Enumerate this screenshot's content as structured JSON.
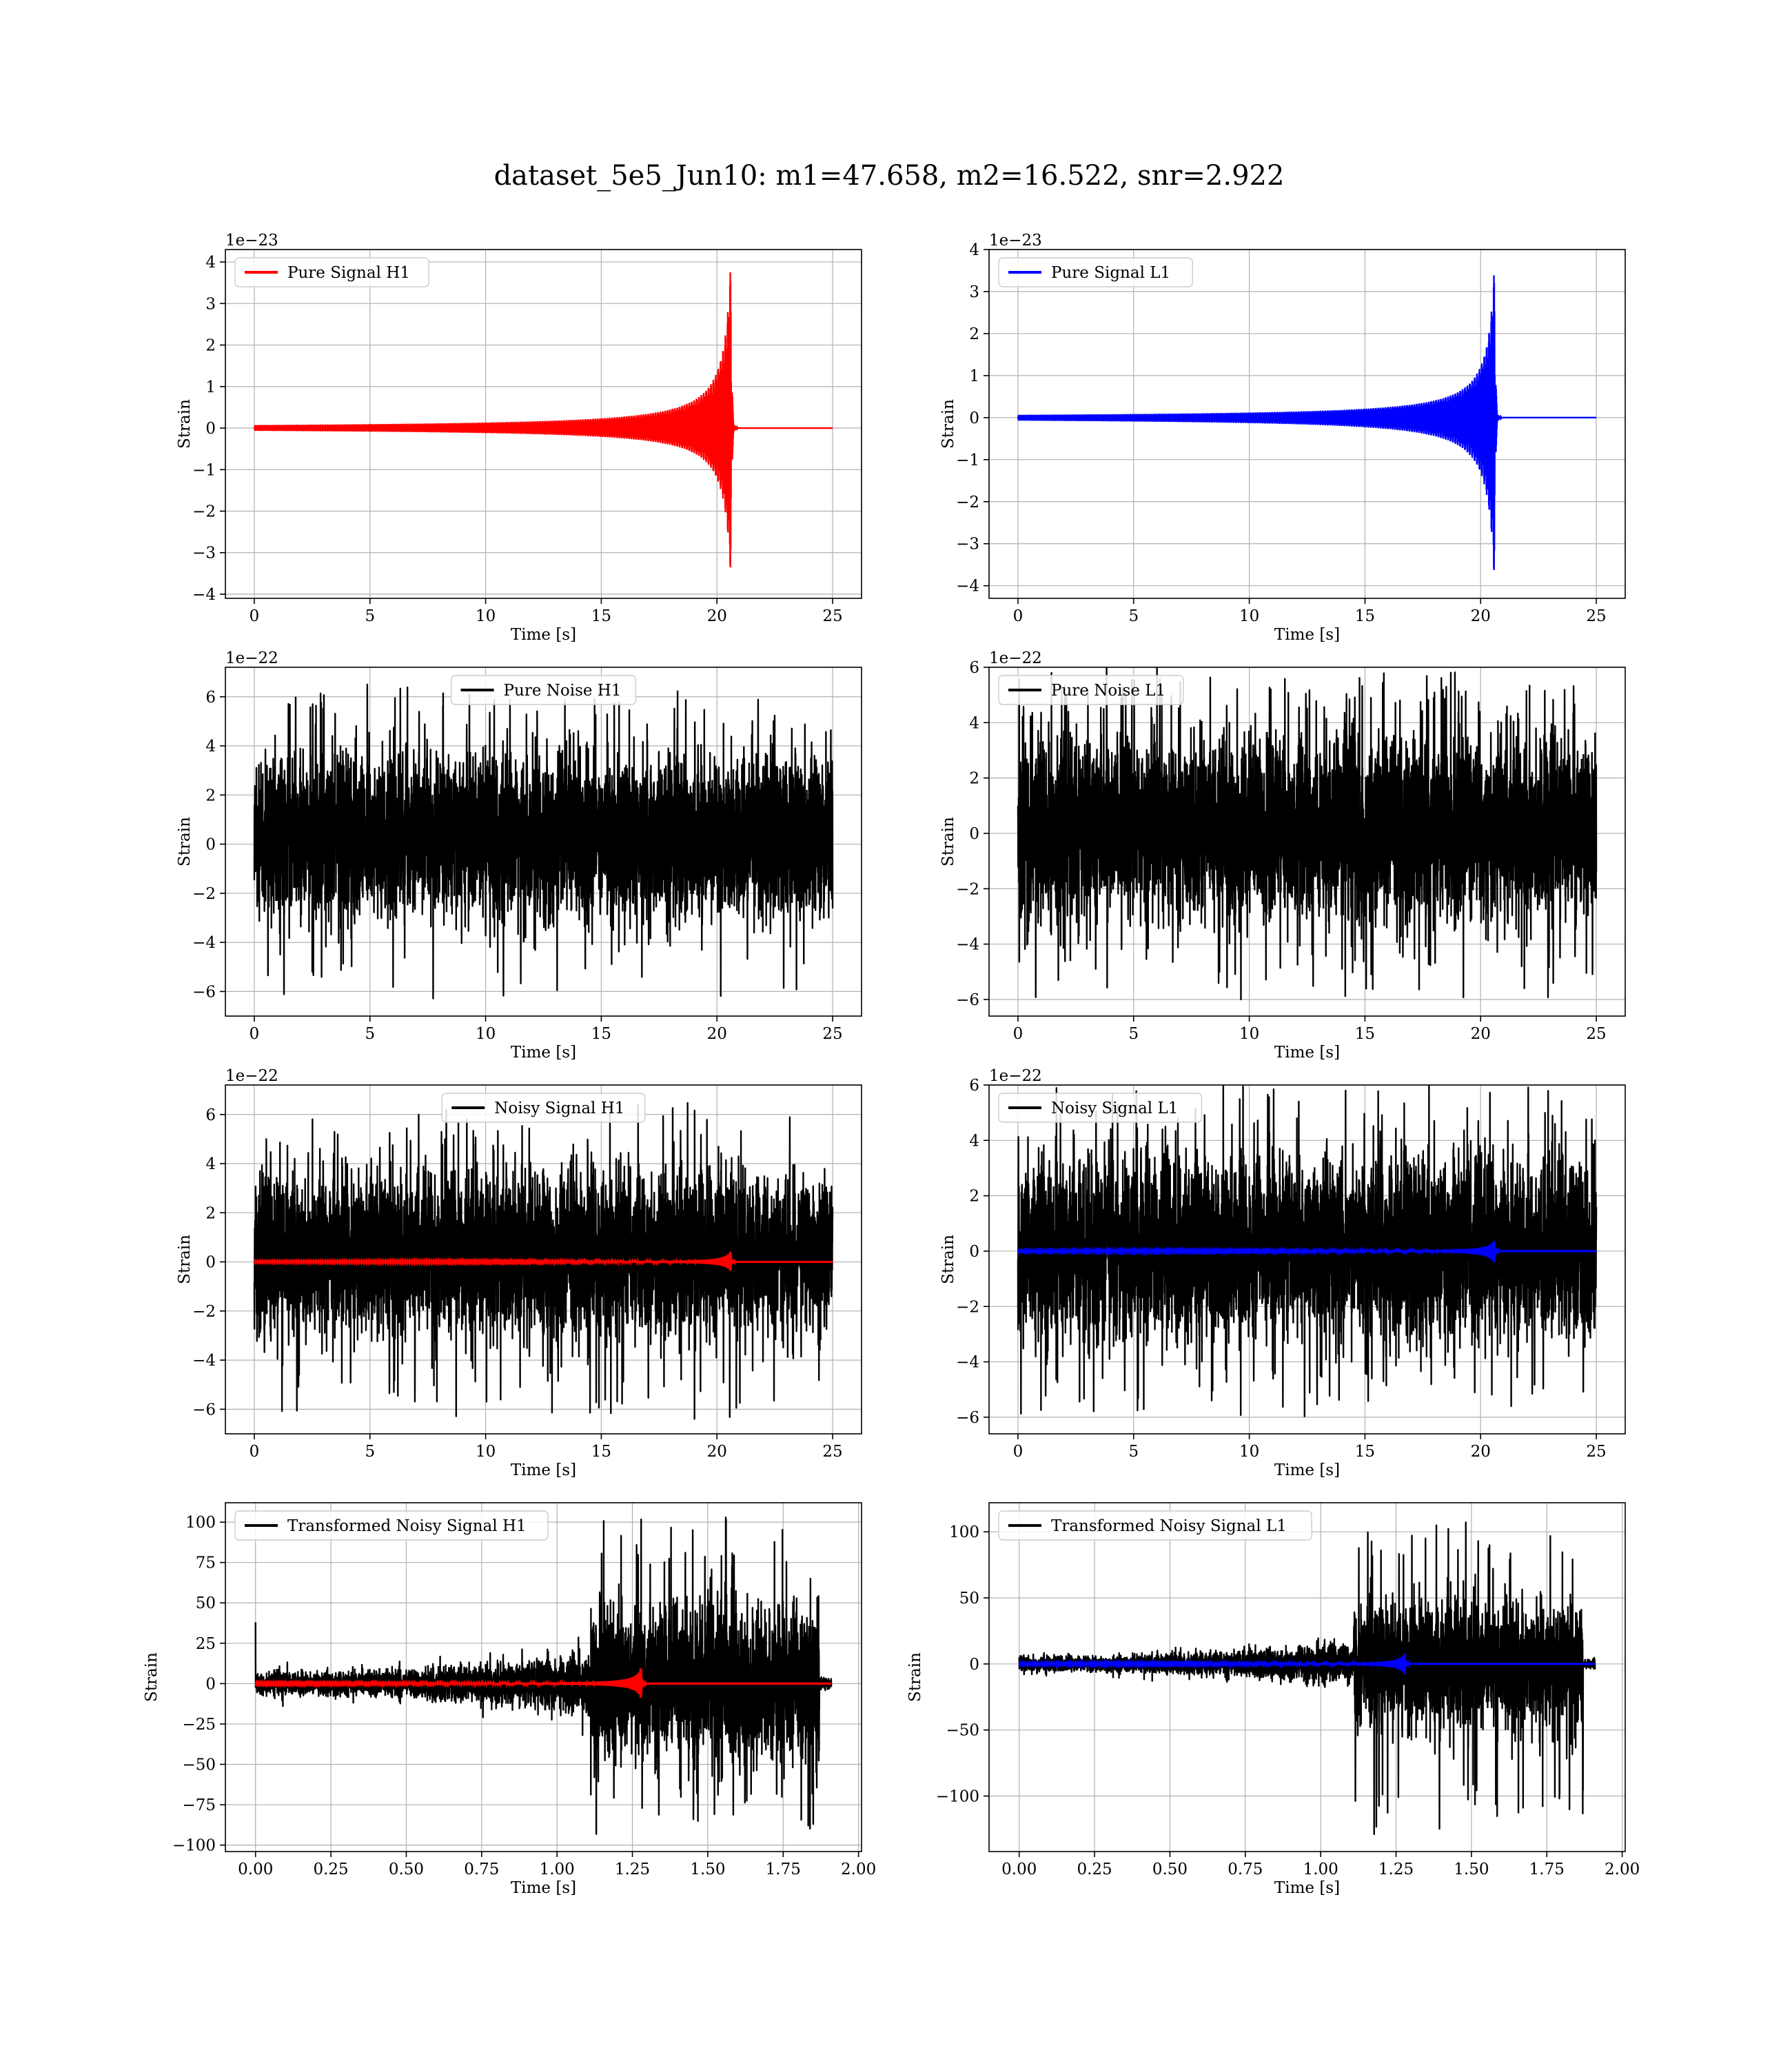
{
  "figure_title": "dataset_5e5_Jun10: m1=47.658, m2=16.522, snr=2.922",
  "chart_data": [
    {
      "id": "pure-signal-h1",
      "type": "line",
      "xlabel": "Time [s]",
      "ylabel": "Strain",
      "offset_text": "1e−23",
      "xlim": [
        -1.25,
        26.25
      ],
      "ylim": [
        -4.1,
        4.3
      ],
      "xticks": [
        0,
        5,
        10,
        15,
        20,
        25
      ],
      "xtick_labels": [
        "0",
        "5",
        "10",
        "15",
        "20",
        "25"
      ],
      "yticks": [
        -4,
        -3,
        -2,
        -1,
        0,
        1,
        2,
        3,
        4
      ],
      "ytick_labels": [
        "−4",
        "−3",
        "−2",
        "−1",
        "0",
        "1",
        "2",
        "3",
        "4"
      ],
      "legend": "upper-left",
      "grid": true,
      "kind": "chirp",
      "series": [
        {
          "name": "Pure Signal H1",
          "color": "#ff0000",
          "x_range": [
            0,
            25
          ],
          "merger_time": 20.6,
          "peak": 4.1,
          "trough": -3.7
        }
      ]
    },
    {
      "id": "pure-signal-l1",
      "type": "line",
      "xlabel": "Time [s]",
      "ylabel": "Strain",
      "offset_text": "1e−23",
      "xlim": [
        -1.25,
        26.25
      ],
      "ylim": [
        -4.3,
        4.0
      ],
      "xticks": [
        0,
        5,
        10,
        15,
        20,
        25
      ],
      "xtick_labels": [
        "0",
        "5",
        "10",
        "15",
        "20",
        "25"
      ],
      "yticks": [
        -4,
        -3,
        -2,
        -1,
        0,
        1,
        2,
        3,
        4
      ],
      "ytick_labels": [
        "−4",
        "−3",
        "−2",
        "−1",
        "0",
        "1",
        "2",
        "3",
        "4"
      ],
      "legend": "upper-left",
      "grid": true,
      "kind": "chirp",
      "series": [
        {
          "name": "Pure Signal L1",
          "color": "#0000ff",
          "x_range": [
            0,
            25
          ],
          "merger_time": 20.6,
          "peak": 3.7,
          "trough": -4.0
        }
      ]
    },
    {
      "id": "pure-noise-h1",
      "type": "line",
      "xlabel": "Time [s]",
      "ylabel": "Strain",
      "offset_text": "1e−22",
      "xlim": [
        -1.25,
        26.25
      ],
      "ylim": [
        -7.0,
        7.2
      ],
      "xticks": [
        0,
        5,
        10,
        15,
        20,
        25
      ],
      "xtick_labels": [
        "0",
        "5",
        "10",
        "15",
        "20",
        "25"
      ],
      "yticks": [
        -6,
        -4,
        -2,
        0,
        2,
        4,
        6
      ],
      "ytick_labels": [
        "−6",
        "−4",
        "−2",
        "0",
        "2",
        "4",
        "6"
      ],
      "legend": "upper-center",
      "grid": true,
      "kind": "noise",
      "series": [
        {
          "name": "Pure Noise H1",
          "color": "#000000",
          "x_range": [
            0,
            25
          ],
          "band": [
            -3.3,
            4.0
          ],
          "spike_max": 6.5,
          "spike_min": -6.4
        }
      ]
    },
    {
      "id": "pure-noise-l1",
      "type": "line",
      "xlabel": "Time [s]",
      "ylabel": "Strain",
      "offset_text": "1e−22",
      "xlim": [
        -1.25,
        26.25
      ],
      "ylim": [
        -6.6,
        6.0
      ],
      "xticks": [
        0,
        5,
        10,
        15,
        20,
        25
      ],
      "xtick_labels": [
        "0",
        "5",
        "10",
        "15",
        "20",
        "25"
      ],
      "yticks": [
        -6,
        -4,
        -2,
        0,
        2,
        4,
        6
      ],
      "ytick_labels": [
        "−6",
        "−4",
        "−2",
        "0",
        "2",
        "4",
        "6"
      ],
      "legend": "upper-left",
      "grid": true,
      "kind": "noise",
      "series": [
        {
          "name": "Pure Noise L1",
          "color": "#000000",
          "x_range": [
            0,
            25
          ],
          "band": [
            -3.5,
            3.8
          ],
          "spike_max": 6.0,
          "spike_min": -6.0
        }
      ]
    },
    {
      "id": "noisy-signal-h1",
      "type": "line",
      "xlabel": "Time [s]",
      "ylabel": "Strain",
      "offset_text": "1e−22",
      "xlim": [
        -1.25,
        26.25
      ],
      "ylim": [
        -7.0,
        7.2
      ],
      "xticks": [
        0,
        5,
        10,
        15,
        20,
        25
      ],
      "xtick_labels": [
        "0",
        "5",
        "10",
        "15",
        "20",
        "25"
      ],
      "yticks": [
        -6,
        -4,
        -2,
        0,
        2,
        4,
        6
      ],
      "ytick_labels": [
        "−6",
        "−4",
        "−2",
        "0",
        "2",
        "4",
        "6"
      ],
      "legend": "upper-center",
      "grid": true,
      "kind": "noise+signal",
      "series": [
        {
          "name": "Noisy Signal H1",
          "color": "#000000",
          "x_range": [
            0,
            25
          ],
          "band": [
            -3.3,
            4.0
          ],
          "spike_max": 6.5,
          "spike_min": -6.4
        },
        {
          "color": "#ff0000",
          "x_range": [
            0,
            25
          ],
          "merger_time": 20.6,
          "peak": 0.45,
          "trough": -0.4
        }
      ]
    },
    {
      "id": "noisy-signal-l1",
      "type": "line",
      "xlabel": "Time [s]",
      "ylabel": "Strain",
      "offset_text": "1e−22",
      "xlim": [
        -1.25,
        26.25
      ],
      "ylim": [
        -6.6,
        6.0
      ],
      "xticks": [
        0,
        5,
        10,
        15,
        20,
        25
      ],
      "xtick_labels": [
        "0",
        "5",
        "10",
        "15",
        "20",
        "25"
      ],
      "yticks": [
        -6,
        -4,
        -2,
        0,
        2,
        4,
        6
      ],
      "ytick_labels": [
        "−6",
        "−4",
        "−2",
        "0",
        "2",
        "4",
        "6"
      ],
      "legend": "upper-left",
      "grid": true,
      "kind": "noise+signal",
      "series": [
        {
          "name": "Noisy Signal L1",
          "color": "#000000",
          "x_range": [
            0,
            25
          ],
          "band": [
            -3.5,
            3.8
          ],
          "spike_max": 6.0,
          "spike_min": -6.0
        },
        {
          "color": "#0000ff",
          "x_range": [
            0,
            25
          ],
          "merger_time": 20.6,
          "peak": 0.4,
          "trough": -0.45
        }
      ]
    },
    {
      "id": "transformed-h1",
      "type": "line",
      "xlabel": "Time [s]",
      "ylabel": "Strain",
      "offset_text": "",
      "xlim": [
        -0.1,
        2.01
      ],
      "ylim": [
        -104,
        112
      ],
      "xticks": [
        0,
        0.25,
        0.5,
        0.75,
        1.0,
        1.25,
        1.5,
        1.75,
        2.0
      ],
      "xtick_labels": [
        "0.00",
        "0.25",
        "0.50",
        "0.75",
        "1.00",
        "1.25",
        "1.50",
        "1.75",
        "2.00"
      ],
      "yticks": [
        -100,
        -75,
        -50,
        -25,
        0,
        25,
        50,
        75,
        100
      ],
      "ytick_labels": [
        "−100",
        "−75",
        "−50",
        "−25",
        "0",
        "25",
        "50",
        "75",
        "100"
      ],
      "legend": "upper-left",
      "grid": true,
      "kind": "transformed",
      "series": [
        {
          "name": "Transformed Noisy Signal H1",
          "color": "#000000",
          "x_range": [
            0,
            1.91
          ],
          "spike_at_start": 38,
          "step_time": 1.11,
          "env_low": 8,
          "env_mid": 16,
          "env_high": 55,
          "spike_max": 105,
          "spike_min": -95,
          "drop_time": 1.87
        },
        {
          "color": "#ff0000",
          "x_range": [
            0,
            1.91
          ],
          "merger_time": 1.28,
          "peak": 11,
          "trough": -10
        }
      ]
    },
    {
      "id": "transformed-l1",
      "type": "line",
      "xlabel": "Time [s]",
      "ylabel": "Strain",
      "offset_text": "",
      "xlim": [
        -0.1,
        2.01
      ],
      "ylim": [
        -142,
        122
      ],
      "xticks": [
        0,
        0.25,
        0.5,
        0.75,
        1.0,
        1.25,
        1.5,
        1.75,
        2.0
      ],
      "xtick_labels": [
        "0.00",
        "0.25",
        "0.50",
        "0.75",
        "1.00",
        "1.25",
        "1.50",
        "1.75",
        "2.00"
      ],
      "yticks": [
        -100,
        -50,
        0,
        50,
        100
      ],
      "ytick_labels": [
        "−100",
        "−50",
        "0",
        "50",
        "100"
      ],
      "legend": "upper-left",
      "grid": true,
      "kind": "transformed",
      "series": [
        {
          "name": "Transformed Noisy Signal L1",
          "color": "#000000",
          "x_range": [
            0,
            1.91
          ],
          "spike_at_start": 5,
          "step_time": 1.11,
          "env_low": 7,
          "env_mid": 14,
          "env_high": 55,
          "spike_max": 108,
          "spike_min": -130,
          "drop_time": 1.87
        },
        {
          "color": "#0000ff",
          "x_range": [
            0,
            1.91
          ],
          "merger_time": 1.28,
          "peak": 9,
          "trough": -9
        }
      ]
    }
  ]
}
